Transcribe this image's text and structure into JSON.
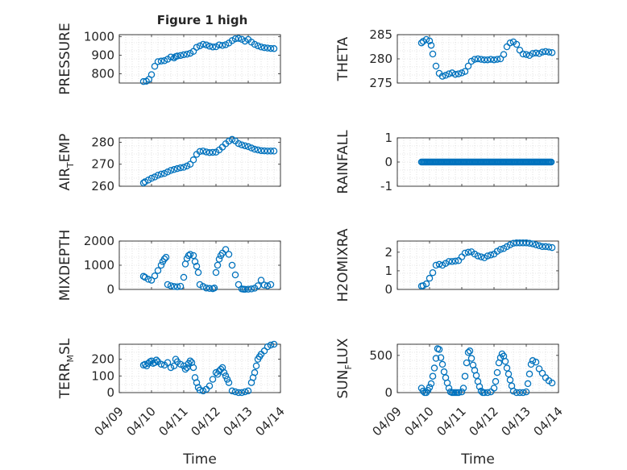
{
  "figure_title": "Figure 1 high",
  "colors": {
    "marker": "#0072BD",
    "axis": "#262626",
    "grid": "#cfcfcf",
    "background": "#ffffff"
  },
  "chart_data": [
    {
      "type": "scatter",
      "id": "pressure",
      "title": "Figure 1 high",
      "ylabel": "PRESSURE",
      "ylabel_sub": null,
      "ylim": [
        750,
        1010
      ],
      "yticks": [
        800,
        900,
        1000
      ],
      "xlim": [
        0,
        5
      ],
      "xticklabels_shown": false,
      "x": [
        0.75,
        0.84,
        0.92,
        1.0,
        1.1,
        1.2,
        1.3,
        1.4,
        1.5,
        1.6,
        1.7,
        1.75,
        1.8,
        1.9,
        2.0,
        2.1,
        2.2,
        2.3,
        2.4,
        2.5,
        2.6,
        2.7,
        2.8,
        2.9,
        3.0,
        3.1,
        3.2,
        3.3,
        3.4,
        3.5,
        3.6,
        3.7,
        3.8,
        3.9,
        4.0,
        4.1,
        4.2,
        4.3,
        4.4,
        4.5,
        4.6,
        4.7,
        4.8
      ],
      "y": [
        758,
        760,
        770,
        795,
        840,
        865,
        868,
        870,
        878,
        890,
        885,
        892,
        895,
        898,
        902,
        905,
        910,
        920,
        942,
        950,
        958,
        955,
        948,
        944,
        945,
        955,
        952,
        956,
        965,
        978,
        988,
        990,
        985,
        975,
        984,
        970,
        958,
        950,
        944,
        940,
        938,
        936,
        935
      ]
    },
    {
      "type": "scatter",
      "id": "theta",
      "title": "",
      "ylabel": "THETA",
      "ylabel_sub": null,
      "ylim": [
        275,
        285
      ],
      "yticks": [
        275,
        280,
        285
      ],
      "xlim": [
        0,
        5
      ],
      "xticklabels_shown": false,
      "x": [
        0.75,
        0.8,
        0.9,
        1.0,
        1.05,
        1.1,
        1.2,
        1.3,
        1.4,
        1.5,
        1.6,
        1.7,
        1.8,
        1.9,
        2.0,
        2.1,
        2.2,
        2.3,
        2.4,
        2.5,
        2.6,
        2.7,
        2.8,
        2.9,
        3.0,
        3.1,
        3.2,
        3.3,
        3.4,
        3.5,
        3.6,
        3.7,
        3.8,
        3.9,
        4.0,
        4.1,
        4.2,
        4.3,
        4.4,
        4.5,
        4.6,
        4.7,
        4.8
      ],
      "y": [
        283.3,
        283.6,
        284.0,
        283.7,
        282.8,
        281.0,
        278.5,
        277.0,
        276.4,
        276.6,
        276.9,
        277.1,
        276.8,
        276.9,
        277.1,
        277.4,
        278.5,
        279.5,
        279.9,
        280.0,
        279.9,
        279.8,
        279.8,
        279.9,
        279.8,
        279.9,
        280.0,
        280.9,
        282.5,
        283.3,
        283.5,
        283.0,
        281.8,
        281.0,
        280.9,
        280.7,
        281.1,
        281.2,
        281.1,
        281.4,
        281.5,
        281.4,
        281.3
      ]
    },
    {
      "type": "scatter",
      "id": "air_temp",
      "title": "",
      "ylabel": "AIR",
      "ylabel_sub": "T",
      "ylabel_suffix": "EMP",
      "ylim": [
        260,
        282
      ],
      "yticks": [
        260,
        270,
        280
      ],
      "xlim": [
        0,
        5
      ],
      "xticklabels_shown": false,
      "x": [
        0.75,
        0.8,
        0.9,
        1.0,
        1.1,
        1.2,
        1.3,
        1.4,
        1.5,
        1.6,
        1.7,
        1.8,
        1.9,
        2.0,
        2.1,
        2.2,
        2.3,
        2.4,
        2.5,
        2.6,
        2.7,
        2.8,
        2.9,
        3.0,
        3.1,
        3.2,
        3.3,
        3.4,
        3.5,
        3.6,
        3.7,
        3.8,
        3.9,
        4.0,
        4.1,
        4.2,
        4.3,
        4.4,
        4.5,
        4.6,
        4.7,
        4.8
      ],
      "y": [
        261.5,
        262.0,
        262.8,
        263.6,
        264.2,
        265.0,
        265.5,
        265.8,
        266.5,
        267.2,
        267.6,
        268.0,
        268.4,
        268.6,
        269.2,
        270.0,
        272.0,
        274.5,
        275.8,
        276.0,
        275.6,
        275.3,
        275.4,
        275.5,
        276.5,
        277.8,
        279.3,
        280.5,
        281.3,
        280.6,
        279.4,
        278.8,
        278.4,
        278.0,
        277.4,
        276.8,
        276.5,
        276.2,
        276.1,
        276.0,
        276.0,
        276.0
      ]
    },
    {
      "type": "scatter",
      "id": "rainfall",
      "title": "",
      "ylabel": "RAINFALL",
      "ylabel_sub": null,
      "ylim": [
        -1,
        1
      ],
      "yticks": [
        -1,
        0,
        1
      ],
      "xlim": [
        0,
        5
      ],
      "xticklabels_shown": false,
      "x_from": 0.75,
      "x_to": 4.8,
      "x_step": 0.035,
      "constant_y": 0
    },
    {
      "type": "scatter",
      "id": "mixdepth",
      "title": "",
      "ylabel": "MIXDEPTH",
      "ylabel_sub": null,
      "ylim": [
        0,
        2000
      ],
      "yticks": [
        0,
        1000,
        2000
      ],
      "xlim": [
        0,
        5
      ],
      "xticklabels_shown": false,
      "x": [
        0.75,
        0.8,
        0.9,
        1.0,
        1.1,
        1.2,
        1.3,
        1.35,
        1.4,
        1.45,
        1.5,
        1.6,
        1.7,
        1.8,
        1.9,
        2.0,
        2.05,
        2.1,
        2.15,
        2.2,
        2.3,
        2.35,
        2.4,
        2.45,
        2.5,
        2.6,
        2.7,
        2.8,
        2.9,
        2.95,
        3.0,
        3.05,
        3.1,
        3.15,
        3.2,
        3.3,
        3.4,
        3.5,
        3.6,
        3.7,
        3.8,
        3.85,
        3.9,
        4.0,
        4.1,
        4.2,
        4.3,
        4.4,
        4.5,
        4.6,
        4.7
      ],
      "y": [
        540,
        500,
        420,
        380,
        560,
        780,
        1000,
        1150,
        1260,
        1330,
        200,
        150,
        120,
        110,
        130,
        500,
        1050,
        1280,
        1400,
        1450,
        1400,
        1150,
        960,
        700,
        200,
        120,
        60,
        40,
        30,
        60,
        700,
        1000,
        1250,
        1400,
        1500,
        1650,
        1450,
        1000,
        600,
        200,
        20,
        10,
        5,
        10,
        20,
        50,
        150,
        380,
        180,
        150,
        200
      ]
    },
    {
      "type": "scatter",
      "id": "h2omixra",
      "title": "",
      "ylabel": "H2OMIXRA",
      "ylabel_sub": null,
      "ylim": [
        0,
        2.6
      ],
      "yticks": [
        0,
        1,
        2
      ],
      "xlim": [
        0,
        5
      ],
      "xticklabels_shown": false,
      "x": [
        0.75,
        0.8,
        0.9,
        1.0,
        1.1,
        1.2,
        1.3,
        1.4,
        1.5,
        1.6,
        1.7,
        1.8,
        1.9,
        2.0,
        2.1,
        2.2,
        2.3,
        2.4,
        2.5,
        2.6,
        2.7,
        2.8,
        2.9,
        3.0,
        3.1,
        3.2,
        3.3,
        3.4,
        3.5,
        3.6,
        3.7,
        3.8,
        3.9,
        4.0,
        4.1,
        4.2,
        4.3,
        4.4,
        4.5,
        4.6,
        4.7,
        4.8
      ],
      "y": [
        0.18,
        0.2,
        0.3,
        0.6,
        0.9,
        1.3,
        1.35,
        1.3,
        1.4,
        1.5,
        1.5,
        1.52,
        1.55,
        1.75,
        1.95,
        2.0,
        2.02,
        1.9,
        1.8,
        1.75,
        1.7,
        1.8,
        1.85,
        1.9,
        2.05,
        2.15,
        2.2,
        2.3,
        2.4,
        2.48,
        2.5,
        2.5,
        2.5,
        2.5,
        2.48,
        2.45,
        2.4,
        2.35,
        2.3,
        2.3,
        2.28,
        2.25
      ]
    },
    {
      "type": "scatter",
      "id": "terr_msl",
      "title": "",
      "ylabel": "TERR",
      "ylabel_sub": "M",
      "ylabel_suffix": "SL",
      "ylim": [
        0,
        290
      ],
      "yticks": [
        0,
        100,
        200
      ],
      "xlim": [
        0,
        5
      ],
      "xticklabels_shown": true,
      "xticklabels": [
        "04/09",
        "04/10",
        "04/11",
        "04/12",
        "04/13",
        "04/14"
      ],
      "xlabel": "Time",
      "x": [
        0.75,
        0.8,
        0.85,
        0.9,
        0.95,
        1.0,
        1.05,
        1.1,
        1.15,
        1.2,
        1.3,
        1.4,
        1.5,
        1.6,
        1.7,
        1.75,
        1.8,
        1.9,
        2.0,
        2.05,
        2.1,
        2.15,
        2.2,
        2.25,
        2.3,
        2.35,
        2.4,
        2.45,
        2.5,
        2.6,
        2.7,
        2.8,
        2.9,
        3.0,
        3.05,
        3.1,
        3.15,
        3.2,
        3.25,
        3.3,
        3.35,
        3.4,
        3.5,
        3.6,
        3.7,
        3.8,
        3.9,
        4.0,
        4.1,
        4.15,
        4.2,
        4.25,
        4.3,
        4.35,
        4.4,
        4.5,
        4.6,
        4.7,
        4.8
      ],
      "y": [
        165,
        170,
        160,
        175,
        185,
        190,
        175,
        180,
        195,
        185,
        170,
        165,
        180,
        150,
        160,
        200,
        185,
        170,
        160,
        140,
        150,
        175,
        190,
        180,
        150,
        90,
        60,
        30,
        15,
        10,
        20,
        40,
        80,
        120,
        110,
        130,
        140,
        150,
        120,
        100,
        80,
        60,
        10,
        5,
        0,
        0,
        5,
        10,
        60,
        90,
        120,
        160,
        200,
        215,
        230,
        250,
        275,
        285,
        290
      ]
    },
    {
      "type": "scatter",
      "id": "sun_flux",
      "title": "",
      "ylabel": "SUN",
      "ylabel_sub": "F",
      "ylabel_suffix": "LUX",
      "ylim": [
        0,
        650
      ],
      "yticks": [
        0,
        500
      ],
      "xlim": [
        0,
        5
      ],
      "xticklabels_shown": true,
      "xticklabels": [
        "04/09",
        "04/10",
        "04/11",
        "04/12",
        "04/13",
        "04/14"
      ],
      "xlabel": "Time",
      "x": [
        0.75,
        0.8,
        0.85,
        0.9,
        0.95,
        1.0,
        1.05,
        1.1,
        1.15,
        1.2,
        1.25,
        1.3,
        1.35,
        1.4,
        1.45,
        1.5,
        1.55,
        1.6,
        1.65,
        1.7,
        1.75,
        1.8,
        1.85,
        1.9,
        2.0,
        2.05,
        2.1,
        2.15,
        2.2,
        2.25,
        2.3,
        2.35,
        2.4,
        2.45,
        2.5,
        2.55,
        2.6,
        2.65,
        2.7,
        2.8,
        2.9,
        3.0,
        3.05,
        3.1,
        3.15,
        3.2,
        3.25,
        3.3,
        3.35,
        3.4,
        3.45,
        3.5,
        3.55,
        3.6,
        3.7,
        3.8,
        3.9,
        4.0,
        4.05,
        4.1,
        4.15,
        4.2,
        4.3,
        4.4,
        4.5,
        4.6,
        4.7,
        4.8
      ],
      "y": [
        60,
        20,
        0,
        0,
        30,
        70,
        120,
        220,
        330,
        460,
        590,
        580,
        470,
        380,
        280,
        200,
        130,
        60,
        10,
        0,
        0,
        0,
        0,
        0,
        10,
        60,
        220,
        400,
        540,
        560,
        460,
        370,
        300,
        230,
        150,
        80,
        20,
        0,
        0,
        0,
        10,
        60,
        150,
        270,
        400,
        470,
        520,
        490,
        420,
        330,
        250,
        170,
        90,
        20,
        0,
        0,
        0,
        10,
        120,
        250,
        380,
        430,
        410,
        320,
        260,
        200,
        160,
        130
      ]
    }
  ]
}
